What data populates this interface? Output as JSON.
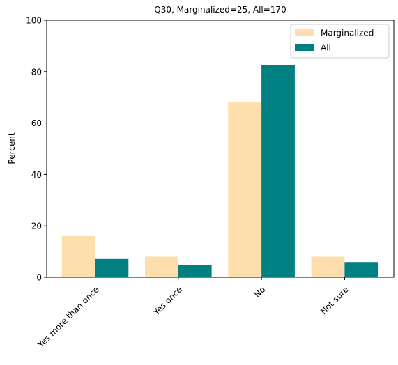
{
  "chart_data": {
    "type": "bar",
    "title": "Q30, Marginalized=25, All=170",
    "xlabel": "",
    "ylabel": "Percent",
    "ylim": [
      0,
      100
    ],
    "yticks": [
      0,
      20,
      40,
      60,
      80,
      100
    ],
    "categories": [
      "Yes more than once",
      "Yes once",
      "No",
      "Not sure"
    ],
    "series": [
      {
        "name": "Marginalized",
        "color": "#FFDEAD",
        "values": [
          16,
          8,
          68,
          8
        ]
      },
      {
        "name": "All",
        "color": "#008080",
        "values": [
          7.1,
          4.7,
          82.4,
          5.9
        ]
      }
    ],
    "grid": false,
    "legend": "top-right"
  }
}
